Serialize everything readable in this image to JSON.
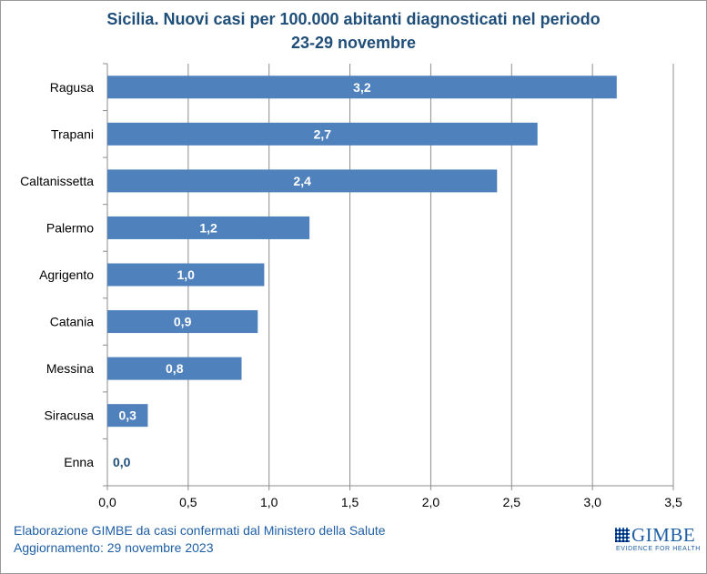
{
  "chart_data": {
    "type": "bar",
    "orientation": "horizontal",
    "title_line1": "Sicilia. Nuovi casi per 100.000 abitanti diagnosticati nel periodo",
    "title_line2": "23-29 novembre",
    "categories": [
      "Ragusa",
      "Trapani",
      "Caltanissetta",
      "Palermo",
      "Agrigento",
      "Catania",
      "Messina",
      "Siracusa",
      "Enna"
    ],
    "values": [
      3.15,
      2.66,
      2.41,
      1.25,
      0.97,
      0.93,
      0.83,
      0.25,
      0.0
    ],
    "value_labels": [
      "3,2",
      "2,7",
      "2,4",
      "1,2",
      "1,0",
      "0,9",
      "0,8",
      "0,3",
      "0,0"
    ],
    "x_ticks": [
      "0,0",
      "0,5",
      "1,0",
      "1,5",
      "2,0",
      "2,5",
      "3,0",
      "3,5"
    ],
    "xlim": [
      0,
      3.5
    ],
    "grid": true,
    "bar_color": "#4f81bd",
    "label_color_inside": "#ffffff",
    "label_color_outside": "#1f4e79"
  },
  "footer": {
    "line1": "Elaborazione GIMBE da casi confermati dal Ministero della Salute",
    "line2": "Aggiornamento: 29 novembre 2023"
  },
  "logo": {
    "name": "GIMBE",
    "tagline": "EVIDENCE FOR HEALTH",
    "icon": "gimbe-grid-logo-icon"
  }
}
